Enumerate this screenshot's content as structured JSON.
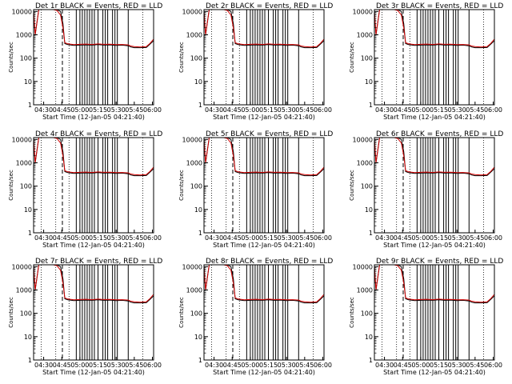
{
  "figure": {
    "ylabel": "Counts/sec",
    "xlabel": "Start Time (12-Jan-05 04:21:40)"
  },
  "colors": {
    "events": "#000000",
    "lld": "#d40000",
    "background": "#ffffff"
  },
  "chart_data": [
    {
      "type": "line",
      "title": "Det 1r BLACK = Events, RED = LLD"
    },
    {
      "type": "line",
      "title": "Det 2r BLACK = Events, RED = LLD"
    },
    {
      "type": "line",
      "title": "Det 3r BLACK = Events, RED = LLD"
    },
    {
      "type": "line",
      "title": "Det 4r BLACK = Events, RED = LLD"
    },
    {
      "type": "line",
      "title": "Det 5r BLACK = Events, RED = LLD"
    },
    {
      "type": "line",
      "title": "Det 6r BLACK = Events, RED = LLD"
    },
    {
      "type": "line",
      "title": "Det 7r BLACK = Events, RED = LLD"
    },
    {
      "type": "line",
      "title": "Det 8r BLACK = Events, RED = LLD"
    },
    {
      "type": "line",
      "title": "Det 9r BLACK = Events, RED = LLD"
    }
  ],
  "shared": {
    "x_ticks": [
      "04:30",
      "04:45",
      "05:00",
      "05:15",
      "05:30",
      "05:45",
      "06:00"
    ],
    "x_tick_minutes": [
      30,
      45,
      60,
      75,
      90,
      105,
      120
    ],
    "xlim_minutes": [
      21.67,
      121.0
    ],
    "y_ticks": [
      "1",
      "10",
      "100",
      "1000",
      "10000"
    ],
    "y_tick_values": [
      1,
      10,
      100,
      1000,
      10000
    ],
    "ylim": [
      1,
      12000
    ],
    "yscale": "log",
    "dotted_lines_minutes": [
      28,
      40,
      51,
      112
    ],
    "dashed_line_minutes": 45.5,
    "drop_lines_minutes": [
      57,
      60,
      62,
      64,
      66,
      68,
      70,
      72,
      75,
      79,
      81,
      83,
      87,
      89,
      91,
      100
    ],
    "series": [
      {
        "name": "Events",
        "x": [
          21.67,
          23,
          26,
          29,
          32,
          35,
          38,
          41,
          44,
          46,
          47.5,
          50,
          55,
          60,
          65,
          70,
          75,
          80,
          85,
          90,
          95,
          100,
          102,
          105,
          110,
          115,
          118,
          121
        ],
        "y": [
          10000,
          1000,
          12000,
          12000,
          12000,
          12000,
          12000,
          12000,
          10000,
          3000,
          420,
          380,
          350,
          360,
          370,
          360,
          380,
          360,
          370,
          350,
          360,
          340,
          300,
          280,
          280,
          285,
          400,
          560
        ]
      },
      {
        "name": "LLD",
        "x": [
          21.67,
          23,
          26,
          29,
          32,
          35,
          38,
          41,
          44,
          46,
          47.5,
          50,
          55,
          60,
          65,
          70,
          75,
          80,
          85,
          90,
          95,
          100,
          102,
          105,
          110,
          115,
          118,
          121
        ],
        "y": [
          10000,
          1050,
          12000,
          12000,
          12000,
          12000,
          12000,
          11000,
          7000,
          2000,
          460,
          410,
          380,
          390,
          400,
          385,
          405,
          390,
          395,
          380,
          385,
          370,
          330,
          310,
          300,
          310,
          430,
          650
        ]
      }
    ]
  }
}
